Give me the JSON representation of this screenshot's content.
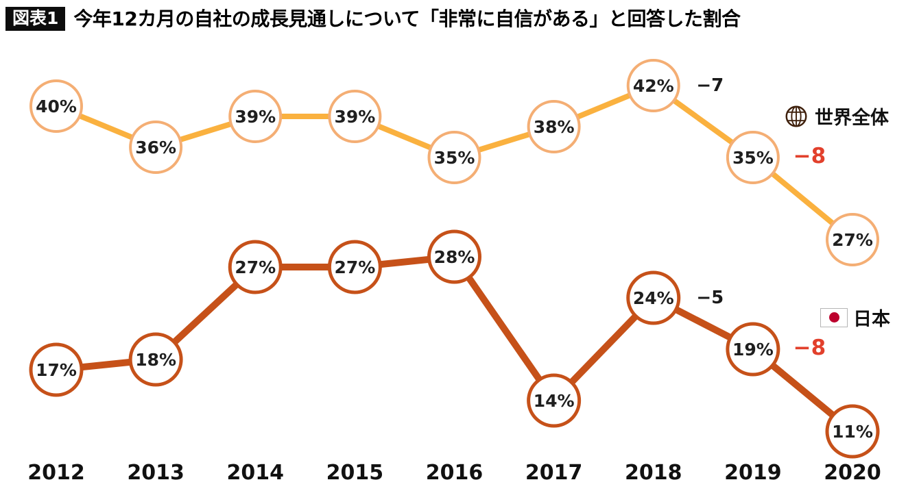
{
  "header": {
    "badge": "図表1",
    "title": "今年12カ月の自社の成長見通しについて「非常に自信がある」と回答した割合"
  },
  "legend": {
    "global": {
      "label": "世界全体",
      "icon": "globe-icon"
    },
    "japan": {
      "label": "日本",
      "icon": "japan-flag-icon"
    }
  },
  "colors": {
    "global_line": "#fab13f",
    "global_marker": "#f4ae74",
    "japan_line": "#c65119",
    "japan_marker": "#c65119",
    "marker_fill": "#ffffff",
    "label_text": "#1f1f1f",
    "axis_text": "#111111",
    "annotation_black": "#1a1a1a",
    "annotation_red": "#e2402c",
    "globe_icon": "#3f200c",
    "flag_red": "#bc002d"
  },
  "chart_data": {
    "type": "line",
    "title": "今年12カ月の自社の成長見通しについて「非常に自信がある」と回答した割合",
    "unit": "%",
    "x": [
      2012,
      2013,
      2014,
      2015,
      2016,
      2017,
      2018,
      2019,
      2020
    ],
    "series": [
      {
        "id": "global",
        "name": "世界全体",
        "values": [
          40,
          36,
          39,
          39,
          35,
          38,
          42,
          35,
          27
        ]
      },
      {
        "id": "japan",
        "name": "日本",
        "values": [
          17,
          18,
          27,
          27,
          28,
          14,
          24,
          19,
          11
        ]
      }
    ],
    "annotations": [
      {
        "series": "global",
        "from": 2018,
        "to": 2019,
        "label": "−7",
        "color": "black"
      },
      {
        "series": "global",
        "from": 2019,
        "to": 2020,
        "label": "−8",
        "color": "red"
      },
      {
        "series": "japan",
        "from": 2018,
        "to": 2019,
        "label": "−5",
        "color": "black"
      },
      {
        "series": "japan",
        "from": 2019,
        "to": 2020,
        "label": "−8",
        "color": "red"
      }
    ],
    "marker_labels": "value_percent",
    "legend_position": "right",
    "grid": false,
    "ylim_hint": [
      0,
      50
    ]
  }
}
